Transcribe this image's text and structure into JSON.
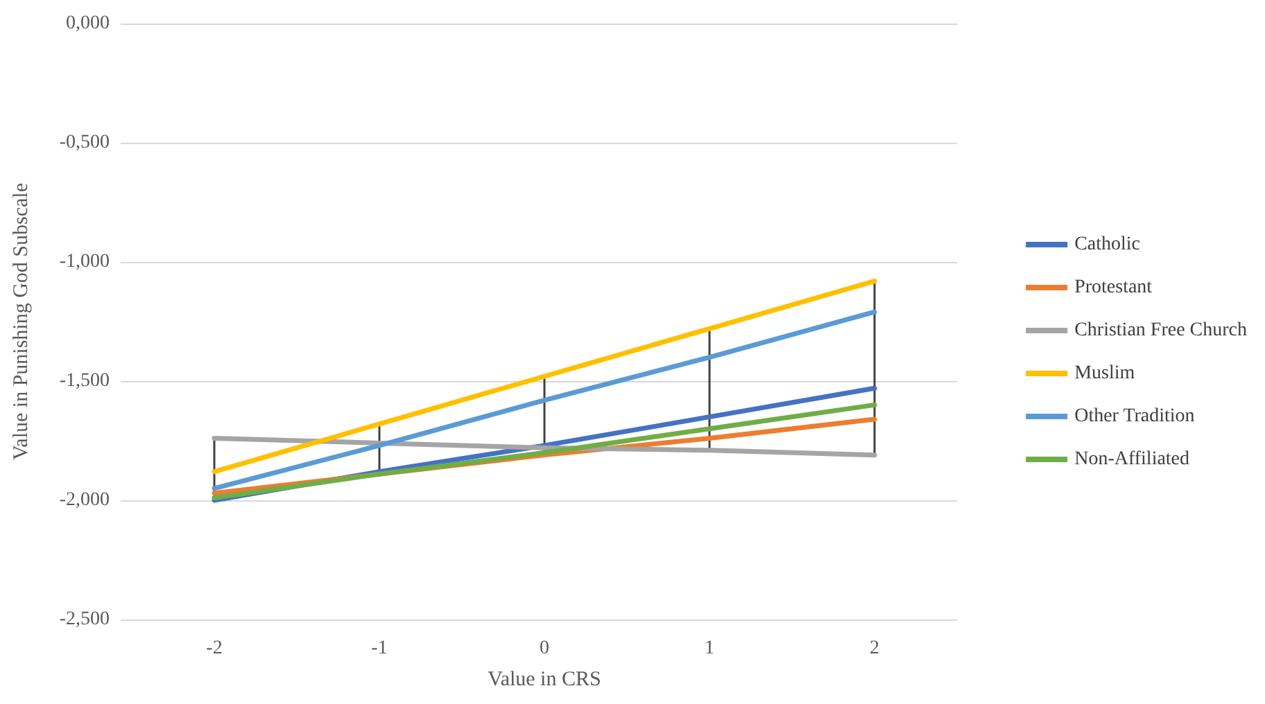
{
  "chart_data": {
    "type": "line",
    "xlabel": "Value in CRS",
    "ylabel": "Value in Punishing God Subscale",
    "categories": [
      "-2",
      "-1",
      "0",
      "1",
      "2"
    ],
    "series": [
      {
        "name": "Catholic",
        "color": "#4472c4",
        "values": [
          -2.0,
          -1.88,
          -1.77,
          -1.65,
          -1.53
        ]
      },
      {
        "name": "Protestant",
        "color": "#ed7d31",
        "values": [
          -1.97,
          -1.89,
          -1.81,
          -1.74,
          -1.66
        ]
      },
      {
        "name": "Christian Free Church",
        "color": "#a5a5a5",
        "values": [
          -1.74,
          -1.76,
          -1.78,
          -1.79,
          -1.81
        ]
      },
      {
        "name": "Muslim",
        "color": "#ffc000",
        "values": [
          -1.88,
          -1.68,
          -1.48,
          -1.28,
          -1.08
        ]
      },
      {
        "name": "Other Tradition",
        "color": "#5b9bd5",
        "values": [
          -1.95,
          -1.77,
          -1.58,
          -1.4,
          -1.21
        ]
      },
      {
        "name": "Non-Affiliated",
        "color": "#70ad47",
        "values": [
          -1.99,
          -1.89,
          -1.8,
          -1.7,
          -1.6
        ]
      },
      {
        "type": "bar",
        "color": "#404040",
        "base": [
          -2.0,
          -1.89,
          -1.81,
          -1.79,
          -1.81
        ],
        "values": [
          0.26,
          0.21,
          0.33,
          0.51,
          0.73
        ]
      }
    ],
    "ylim": [
      -2.5,
      0
    ],
    "yticks": [
      {
        "value": 0,
        "label": "0,000"
      },
      {
        "value": -0.5,
        "label": "-0,500"
      },
      {
        "value": -1,
        "label": "-1,000"
      },
      {
        "value": -1.5,
        "label": "-1,500"
      },
      {
        "value": -2,
        "label": "-2,000"
      },
      {
        "value": -2.5,
        "label": "-2,500"
      }
    ],
    "grid": "y",
    "legend": "right",
    "marker": "none",
    "line_style": "solid"
  }
}
